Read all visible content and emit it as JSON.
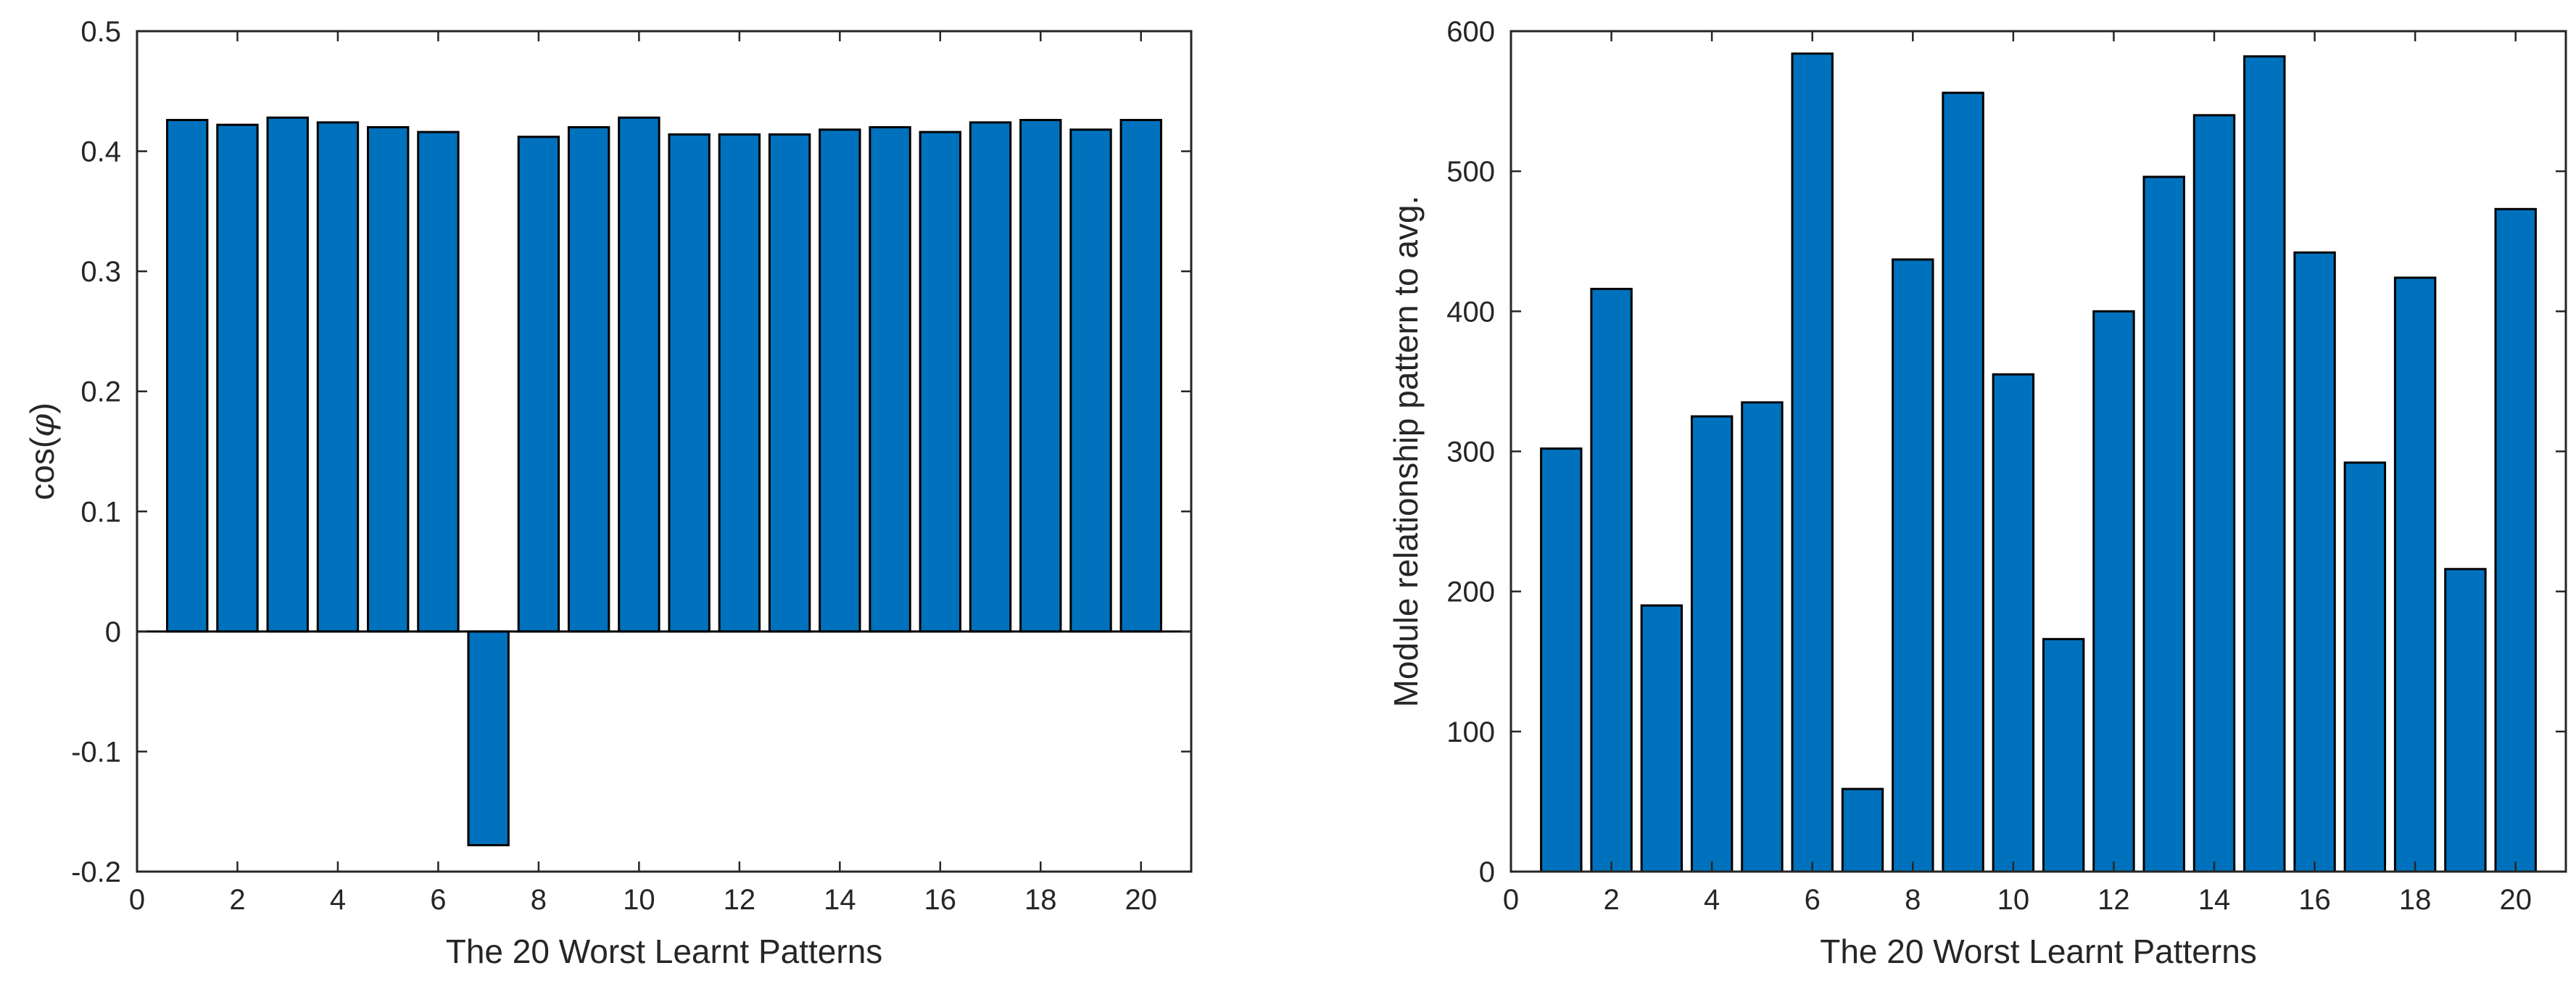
{
  "chart_data": [
    {
      "type": "bar",
      "title": "",
      "xlabel": "The 20 Worst Learnt Patterns",
      "ylabel": "cos(φ)",
      "ylabel_prefix": "cos(",
      "ylabel_symbol": "φ",
      "ylabel_suffix": ")",
      "xlim": [
        0,
        21
      ],
      "ylim": [
        -0.2,
        0.5
      ],
      "xticks": [
        0,
        2,
        4,
        6,
        8,
        10,
        12,
        14,
        16,
        18,
        20
      ],
      "yticks": [
        -0.2,
        -0.1,
        0,
        0.1,
        0.2,
        0.3,
        0.4,
        0.5
      ],
      "ytick_labels": [
        "-0.2",
        "-0.1",
        "0",
        "0.1",
        "0.2",
        "0.3",
        "0.4",
        "0.5"
      ],
      "categories": [
        1,
        2,
        3,
        4,
        5,
        6,
        7,
        8,
        9,
        10,
        11,
        12,
        13,
        14,
        15,
        16,
        17,
        18,
        19,
        20
      ],
      "values": [
        0.426,
        0.422,
        0.428,
        0.424,
        0.42,
        0.416,
        -0.178,
        0.412,
        0.42,
        0.428,
        0.414,
        0.414,
        0.414,
        0.418,
        0.42,
        0.416,
        0.424,
        0.426,
        0.418,
        0.426
      ],
      "bar_color": "#0072BD",
      "zero_line": true
    },
    {
      "type": "bar",
      "title": "",
      "xlabel": "The 20 Worst Learnt Patterns",
      "ylabel": "Module relationship pattern to avg.",
      "xlim": [
        0,
        21
      ],
      "ylim": [
        0,
        600
      ],
      "xticks": [
        0,
        2,
        4,
        6,
        8,
        10,
        12,
        14,
        16,
        18,
        20
      ],
      "yticks": [
        0,
        100,
        200,
        300,
        400,
        500,
        600
      ],
      "ytick_labels": [
        "0",
        "100",
        "200",
        "300",
        "400",
        "500",
        "600"
      ],
      "categories": [
        1,
        2,
        3,
        4,
        5,
        6,
        7,
        8,
        9,
        10,
        11,
        12,
        13,
        14,
        15,
        16,
        17,
        18,
        19,
        20
      ],
      "values": [
        302,
        416,
        190,
        325,
        335,
        584,
        59,
        437,
        556,
        355,
        166,
        400,
        496,
        540,
        582,
        442,
        292,
        424,
        216,
        473
      ],
      "bar_color": "#0072BD",
      "zero_line": false
    }
  ]
}
